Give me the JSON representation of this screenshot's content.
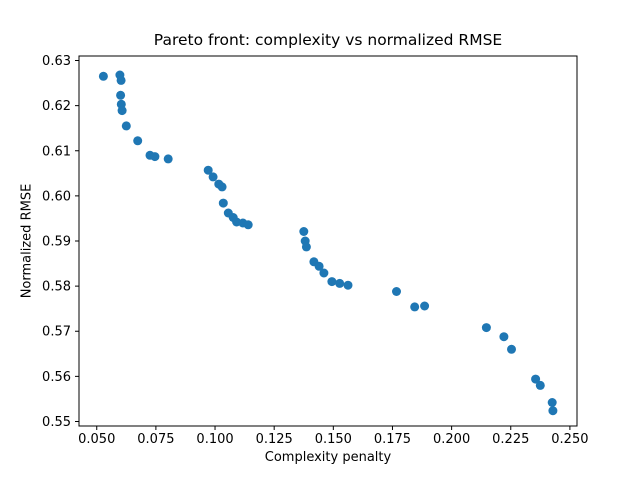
{
  "chart_data": {
    "type": "scatter",
    "title": "Pareto front: complexity vs normalized RMSE",
    "xlabel": "Complexity penalty",
    "ylabel": "Normalized RMSE",
    "marker_color": "#1f77b4",
    "background_color": "#ffffff",
    "grid": false,
    "legend_position": "none",
    "xlim": [
      0.0425,
      0.253
    ],
    "ylim": [
      0.549,
      0.631
    ],
    "xticks": [
      0.05,
      0.075,
      0.1,
      0.125,
      0.15,
      0.175,
      0.2,
      0.225,
      0.25
    ],
    "xtick_labels": [
      "0.050",
      "0.075",
      "0.100",
      "0.125",
      "0.150",
      "0.175",
      "0.200",
      "0.225",
      "0.250"
    ],
    "yticks": [
      0.55,
      0.56,
      0.57,
      0.58,
      0.59,
      0.6,
      0.61,
      0.62,
      0.63
    ],
    "ytick_labels": [
      "0.55",
      "0.56",
      "0.57",
      "0.58",
      "0.59",
      "0.60",
      "0.61",
      "0.62",
      "0.63"
    ],
    "points": [
      [
        0.0528,
        0.6265
      ],
      [
        0.0598,
        0.6268
      ],
      [
        0.0603,
        0.6256
      ],
      [
        0.0601,
        0.6223
      ],
      [
        0.0604,
        0.6203
      ],
      [
        0.0607,
        0.6189
      ],
      [
        0.0625,
        0.6155
      ],
      [
        0.0673,
        0.6122
      ],
      [
        0.0725,
        0.609
      ],
      [
        0.0746,
        0.6087
      ],
      [
        0.0802,
        0.6082
      ],
      [
        0.0971,
        0.6057
      ],
      [
        0.0992,
        0.6042
      ],
      [
        0.1016,
        0.6026
      ],
      [
        0.103,
        0.602
      ],
      [
        0.1035,
        0.5984
      ],
      [
        0.1056,
        0.5962
      ],
      [
        0.1077,
        0.5952
      ],
      [
        0.1091,
        0.5942
      ],
      [
        0.1118,
        0.594
      ],
      [
        0.114,
        0.5936
      ],
      [
        0.1375,
        0.5921
      ],
      [
        0.1381,
        0.59
      ],
      [
        0.1386,
        0.5887
      ],
      [
        0.1418,
        0.5854
      ],
      [
        0.144,
        0.5844
      ],
      [
        0.146,
        0.5829
      ],
      [
        0.1494,
        0.581
      ],
      [
        0.1527,
        0.5806
      ],
      [
        0.1562,
        0.5802
      ],
      [
        0.1767,
        0.5788
      ],
      [
        0.1844,
        0.5754
      ],
      [
        0.1886,
        0.5756
      ],
      [
        0.2147,
        0.5708
      ],
      [
        0.2221,
        0.5688
      ],
      [
        0.2253,
        0.566
      ],
      [
        0.2355,
        0.5594
      ],
      [
        0.2375,
        0.558
      ],
      [
        0.2425,
        0.5542
      ],
      [
        0.2428,
        0.5524
      ]
    ]
  }
}
